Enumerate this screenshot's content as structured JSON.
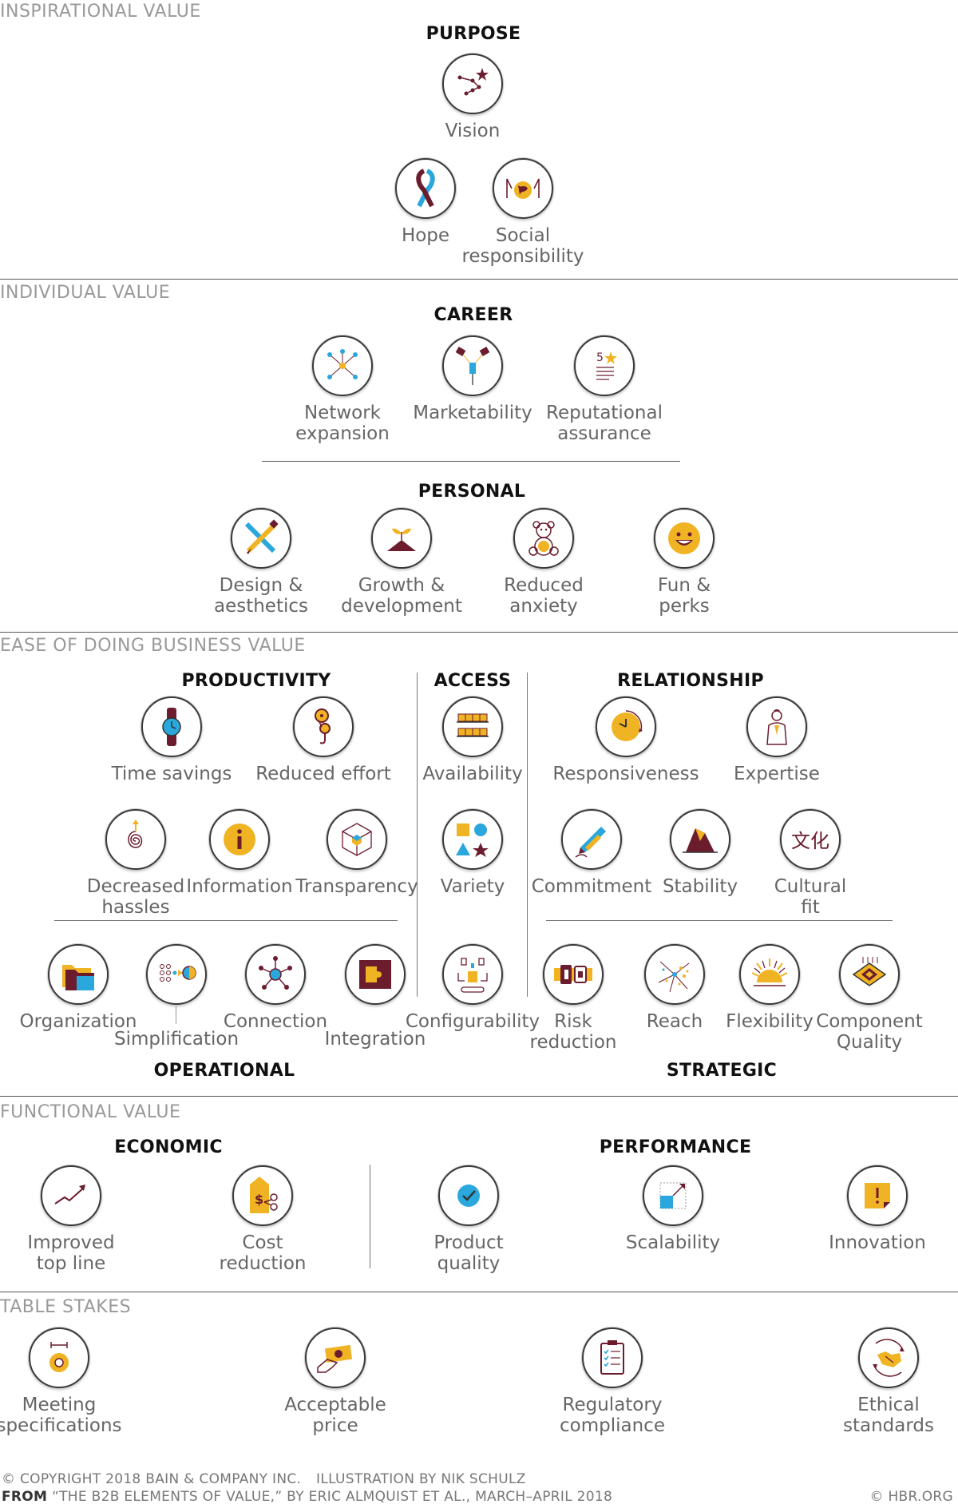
{
  "sections": {
    "inspirational": "INSPIRATIONAL VALUE",
    "individual": "INDIVIDUAL VALUE",
    "ease": "EASE OF DOING BUSINESS VALUE",
    "functional": "FUNCTIONAL VALUE",
    "table_stakes": "TABLE STAKES"
  },
  "categories": {
    "purpose": "PURPOSE",
    "career": "CAREER",
    "personal": "PERSONAL",
    "productivity": "PRODUCTIVITY",
    "access": "ACCESS",
    "relationship": "RELATIONSHIP",
    "operational": "OPERATIONAL",
    "strategic": "STRATEGIC",
    "economic": "ECONOMIC",
    "performance": "PERFORMANCE"
  },
  "items": {
    "vision": "Vision",
    "hope": "Hope",
    "social": "Social\nresponsibility",
    "network": "Network\nexpansion",
    "marketability": "Marketability",
    "reputational": "Reputational\nassurance",
    "design": "Design &\naesthetics",
    "growth": "Growth &\ndevelopment",
    "anxiety": "Reduced\nanxiety",
    "fun": "Fun &\nperks",
    "time": "Time savings",
    "effort": "Reduced effort",
    "availability": "Availability",
    "responsiveness": "Responsiveness",
    "expertise": "Expertise",
    "hassles": "Decreased\nhassles",
    "information": "Information",
    "transparency": "Transparency",
    "variety": "Variety",
    "commitment": "Commitment",
    "stability": "Stability",
    "cultural": "Cultural\nfit",
    "organization": "Organization",
    "simplification": "Simplification",
    "connection": "Connection",
    "integration": "Integration",
    "configurability": "Configurability",
    "risk": "Risk\nreduction",
    "reach": "Reach",
    "flexibility": "Flexibility",
    "component": "Component\nQuality",
    "topline": "Improved\ntop line",
    "cost": "Cost\nreduction",
    "quality": "Product\nquality",
    "scalability": "Scalability",
    "innovation": "Innovation",
    "specs": "Meeting\nspecifications",
    "price": "Acceptable\nprice",
    "regulatory": "Regulatory\ncompliance",
    "ethical": "Ethical\nstandards"
  },
  "footer": {
    "copyright": "© COPYRIGHT 2018 BAIN & COMPANY INC.",
    "illustration": "ILLUSTRATION BY NIK SCHULZ",
    "from_label": "FROM",
    "from_text": "“THE B2B ELEMENTS OF VALUE,” BY ERIC ALMQUIST ET AL., MARCH–APRIL 2018",
    "hbr": "© HBR.ORG"
  },
  "colors": {
    "maroon": "#6b1d2e",
    "gold": "#f0b323",
    "blue": "#2aa7dc"
  }
}
